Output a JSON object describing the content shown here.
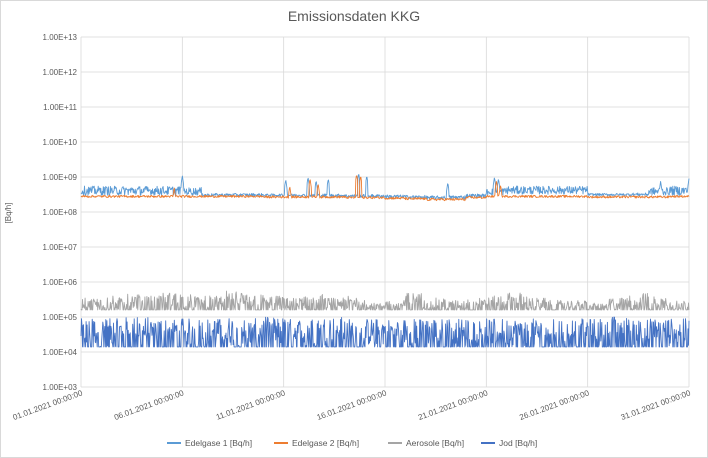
{
  "chart_data": {
    "type": "line",
    "title": "Emissionsdaten KKG",
    "xlabel": "",
    "ylabel": "[Bq/h]",
    "y_scale": "log",
    "ylim": [
      1000,
      10000000000000
    ],
    "y_ticks": [
      "1.00E+03",
      "1.00E+04",
      "1.00E+05",
      "1.00E+06",
      "1.00E+07",
      "1.00E+08",
      "1.00E+09",
      "1.00E+10",
      "1.00E+11",
      "1.00E+12",
      "1.00E+13"
    ],
    "x_ticks": [
      "01.01.2021 00:00:00",
      "06.01.2021 00:00:00",
      "11.01.2021 00:00:00",
      "16.01.2021 00:00:00",
      "21.01.2021 00:00:00",
      "26.01.2021 00:00:00",
      "31.01.2021 00:00:00"
    ],
    "xlim": [
      "01.01.2021 00:00:00",
      "31.01.2021 00:00:00"
    ],
    "grid": true,
    "legend": "bottom",
    "series": [
      {
        "name": "Edelgase 1 [Bq/h]",
        "color": "#5b9bd5",
        "range_by_day": [
          [
            300000000.0,
            550000000.0
          ],
          [
            300000000.0,
            550000000.0
          ],
          [
            300000000.0,
            550000000.0
          ],
          [
            300000000.0,
            550000000.0
          ],
          [
            300000000.0,
            550000000.0
          ],
          [
            300000000.0,
            500000000.0
          ],
          [
            280000000.0,
            340000000.0
          ],
          [
            280000000.0,
            340000000.0
          ],
          [
            280000000.0,
            340000000.0
          ],
          [
            280000000.0,
            330000000.0
          ],
          [
            280000000.0,
            330000000.0
          ],
          [
            270000000.0,
            330000000.0
          ],
          [
            270000000.0,
            330000000.0
          ],
          [
            260000000.0,
            320000000.0
          ],
          [
            260000000.0,
            320000000.0
          ],
          [
            250000000.0,
            310000000.0
          ],
          [
            240000000.0,
            300000000.0
          ],
          [
            230000000.0,
            290000000.0
          ],
          [
            230000000.0,
            300000000.0
          ],
          [
            260000000.0,
            330000000.0
          ],
          [
            300000000.0,
            500000000.0
          ],
          [
            320000000.0,
            550000000.0
          ],
          [
            320000000.0,
            550000000.0
          ],
          [
            320000000.0,
            550000000.0
          ],
          [
            320000000.0,
            550000000.0
          ],
          [
            290000000.0,
            340000000.0
          ],
          [
            290000000.0,
            340000000.0
          ],
          [
            290000000.0,
            350000000.0
          ],
          [
            300000000.0,
            500000000.0
          ],
          [
            300000000.0,
            550000000.0
          ],
          [
            300000000.0,
            600000000.0
          ]
        ],
        "spikes": [
          [
            5.0,
            1100000000.0
          ],
          [
            10.1,
            850000000.0
          ],
          [
            11.2,
            1000000000.0
          ],
          [
            11.6,
            800000000.0
          ],
          [
            12.2,
            900000000.0
          ],
          [
            13.7,
            1300000000.0
          ],
          [
            14.1,
            1100000000.0
          ],
          [
            18.1,
            700000000.0
          ],
          [
            20.4,
            1000000000.0
          ],
          [
            20.6,
            900000000.0
          ],
          [
            28.6,
            750000000.0
          ],
          [
            30.0,
            900000000.0
          ]
        ]
      },
      {
        "name": "Edelgase 2 [Bq/h]",
        "color": "#ed7d31",
        "range_by_day": [
          [
            260000000.0,
            300000000.0
          ],
          [
            260000000.0,
            300000000.0
          ],
          [
            260000000.0,
            300000000.0
          ],
          [
            260000000.0,
            300000000.0
          ],
          [
            260000000.0,
            300000000.0
          ],
          [
            260000000.0,
            300000000.0
          ],
          [
            260000000.0,
            300000000.0
          ],
          [
            260000000.0,
            300000000.0
          ],
          [
            260000000.0,
            300000000.0
          ],
          [
            250000000.0,
            290000000.0
          ],
          [
            250000000.0,
            290000000.0
          ],
          [
            250000000.0,
            290000000.0
          ],
          [
            250000000.0,
            290000000.0
          ],
          [
            240000000.0,
            280000000.0
          ],
          [
            240000000.0,
            280000000.0
          ],
          [
            230000000.0,
            270000000.0
          ],
          [
            220000000.0,
            260000000.0
          ],
          [
            210000000.0,
            250000000.0
          ],
          [
            210000000.0,
            250000000.0
          ],
          [
            240000000.0,
            280000000.0
          ],
          [
            260000000.0,
            300000000.0
          ],
          [
            260000000.0,
            300000000.0
          ],
          [
            260000000.0,
            300000000.0
          ],
          [
            260000000.0,
            300000000.0
          ],
          [
            260000000.0,
            300000000.0
          ],
          [
            250000000.0,
            290000000.0
          ],
          [
            250000000.0,
            290000000.0
          ],
          [
            250000000.0,
            290000000.0
          ],
          [
            250000000.0,
            290000000.0
          ],
          [
            260000000.0,
            300000000.0
          ],
          [
            260000000.0,
            300000000.0
          ]
        ],
        "spikes": [
          [
            4.6,
            500000000.0
          ],
          [
            10.3,
            550000000.0
          ],
          [
            11.3,
            900000000.0
          ],
          [
            11.7,
            650000000.0
          ],
          [
            13.6,
            1200000000.0
          ],
          [
            13.8,
            1100000000.0
          ],
          [
            20.5,
            800000000.0
          ],
          [
            20.7,
            600000000.0
          ]
        ]
      },
      {
        "name": "Aerosole [Bq/h]",
        "color": "#a5a5a5",
        "baseline": 160000.0,
        "peak_by_day": [
          350000.0,
          400000.0,
          450000.0,
          400000.0,
          500000.0,
          450000.0,
          400000.0,
          550000.0,
          450000.0,
          400000.0,
          350000.0,
          450000.0,
          350000.0,
          400000.0,
          250000.0,
          300000.0,
          500000.0,
          350000.0,
          300000.0,
          350000.0,
          400000.0,
          500000.0,
          350000.0,
          300000.0,
          300000.0,
          250000.0,
          350000.0,
          500000.0,
          400000.0,
          300000.0,
          250000.0
        ]
      },
      {
        "name": "Jod [Bq/h]",
        "color": "#4472c4",
        "baseline": 14000.0,
        "peak_by_day": [
          90000.0,
          90000.0,
          100000.0,
          100000.0,
          90000.0,
          90000.0,
          90000.0,
          100000.0,
          90000.0,
          100000.0,
          90000.0,
          90000.0,
          100000.0,
          90000.0,
          90000.0,
          90000.0,
          90000.0,
          90000.0,
          90000.0,
          90000.0,
          90000.0,
          90000.0,
          90000.0,
          90000.0,
          90000.0,
          90000.0,
          110000.0,
          90000.0,
          90000.0,
          90000.0,
          90000.0
        ]
      }
    ]
  }
}
